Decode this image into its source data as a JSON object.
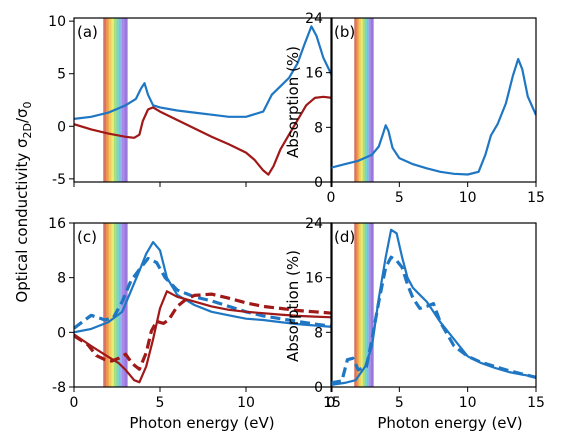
{
  "colors": {
    "blue": "#1f77c4",
    "red": "#a01818",
    "axis": "#000000"
  },
  "visible_band": {
    "x_range": [
      1.7,
      3.1
    ],
    "colors": [
      "#d45a4a",
      "#e88a3a",
      "#f0c040",
      "#e8e860",
      "#9fd86a",
      "#5fd0c8",
      "#7fa8e8",
      "#9a7ae0",
      "#8a60d8"
    ]
  },
  "shared_labels": {
    "ylabel_left": "Optical conductivity σ",
    "ylabel_left_sub": "2D",
    "ylabel_left_tail": "/σ",
    "ylabel_left_sub2": "0",
    "ylabel_right": "Absorption (%)",
    "xlabel": "Photon energy (eV)"
  },
  "chart_data": [
    {
      "id": "a",
      "panel_label": "(a)",
      "type": "line",
      "xlim": [
        0,
        15
      ],
      "ylim": [
        -5.3,
        10.3
      ],
      "xticks": [
        0,
        5,
        10,
        15
      ],
      "xticks_labeled": false,
      "yticks": [
        -5,
        0,
        5,
        10
      ],
      "series": [
        {
          "color": "blue",
          "dashed": false,
          "points": [
            [
              0,
              0.7
            ],
            [
              1,
              0.9
            ],
            [
              2,
              1.3
            ],
            [
              3,
              2.0
            ],
            [
              3.6,
              2.6
            ],
            [
              3.9,
              3.6
            ],
            [
              4.1,
              4.1
            ],
            [
              4.3,
              3.0
            ],
            [
              4.6,
              2.0
            ],
            [
              5,
              1.8
            ],
            [
              6,
              1.5
            ],
            [
              7,
              1.3
            ],
            [
              8,
              1.1
            ],
            [
              9,
              0.9
            ],
            [
              10,
              0.9
            ],
            [
              11,
              1.4
            ],
            [
              11.5,
              3.0
            ],
            [
              12,
              3.8
            ],
            [
              12.5,
              4.6
            ],
            [
              13,
              6.0
            ],
            [
              13.4,
              7.8
            ],
            [
              13.8,
              9.5
            ],
            [
              14.1,
              8.6
            ],
            [
              14.5,
              6.5
            ],
            [
              15,
              4.8
            ]
          ]
        },
        {
          "color": "red",
          "dashed": false,
          "points": [
            [
              0,
              0.2
            ],
            [
              1,
              -0.3
            ],
            [
              2,
              -0.7
            ],
            [
              3,
              -1.0
            ],
            [
              3.5,
              -1.1
            ],
            [
              3.8,
              -0.8
            ],
            [
              4.0,
              0.5
            ],
            [
              4.3,
              1.6
            ],
            [
              4.6,
              1.8
            ],
            [
              5,
              1.4
            ],
            [
              6,
              0.6
            ],
            [
              7,
              -0.2
            ],
            [
              8,
              -1.0
            ],
            [
              9,
              -1.7
            ],
            [
              10,
              -2.5
            ],
            [
              10.5,
              -3.2
            ],
            [
              11,
              -4.2
            ],
            [
              11.3,
              -4.6
            ],
            [
              11.6,
              -3.8
            ],
            [
              12,
              -2.2
            ],
            [
              12.5,
              -0.8
            ],
            [
              13,
              0.6
            ],
            [
              13.5,
              2.0
            ],
            [
              14,
              2.7
            ],
            [
              14.5,
              2.8
            ],
            [
              15,
              2.7
            ]
          ]
        }
      ]
    },
    {
      "id": "b",
      "panel_label": "(b)",
      "type": "line",
      "xlim": [
        0,
        15
      ],
      "ylim": [
        0,
        24
      ],
      "xticks": [
        0,
        5,
        10,
        15
      ],
      "xticks_labeled": true,
      "yticks": [
        0,
        8,
        16,
        24
      ],
      "series": [
        {
          "color": "blue",
          "dashed": false,
          "points": [
            [
              0,
              2.1
            ],
            [
              1,
              2.6
            ],
            [
              2,
              3.1
            ],
            [
              3,
              4.0
            ],
            [
              3.5,
              5.2
            ],
            [
              3.8,
              7.0
            ],
            [
              4.0,
              8.3
            ],
            [
              4.2,
              7.5
            ],
            [
              4.5,
              5.0
            ],
            [
              5,
              3.5
            ],
            [
              6,
              2.6
            ],
            [
              7,
              2.0
            ],
            [
              8,
              1.5
            ],
            [
              9,
              1.2
            ],
            [
              10,
              1.1
            ],
            [
              10.8,
              1.5
            ],
            [
              11.3,
              4.0
            ],
            [
              11.7,
              6.8
            ],
            [
              12.2,
              8.5
            ],
            [
              12.8,
              11.5
            ],
            [
              13.3,
              15.5
            ],
            [
              13.7,
              18.0
            ],
            [
              14,
              16.5
            ],
            [
              14.4,
              12.5
            ],
            [
              15,
              9.8
            ]
          ]
        }
      ]
    },
    {
      "id": "c",
      "panel_label": "(c)",
      "type": "line",
      "xlim": [
        0,
        15
      ],
      "ylim": [
        -8,
        16
      ],
      "xticks": [
        0,
        5,
        10,
        15
      ],
      "xticks_labeled": true,
      "yticks": [
        -8,
        0,
        8,
        16
      ],
      "series": [
        {
          "color": "blue",
          "dashed": false,
          "points": [
            [
              0,
              0
            ],
            [
              1,
              0.5
            ],
            [
              2,
              1.5
            ],
            [
              2.8,
              3.0
            ],
            [
              3.3,
              6.0
            ],
            [
              3.8,
              9.0
            ],
            [
              4.2,
              11.5
            ],
            [
              4.6,
              13.2
            ],
            [
              5.0,
              12.0
            ],
            [
              5.4,
              8.0
            ],
            [
              6,
              5.5
            ],
            [
              7,
              4.0
            ],
            [
              8,
              3.0
            ],
            [
              9,
              2.5
            ],
            [
              10,
              2.0
            ],
            [
              11,
              1.8
            ],
            [
              12,
              1.5
            ],
            [
              13,
              1.2
            ],
            [
              14,
              1.0
            ],
            [
              15,
              0.8
            ]
          ]
        },
        {
          "color": "blue",
          "dashed": true,
          "points": [
            [
              0,
              0.6
            ],
            [
              1,
              2.5
            ],
            [
              1.8,
              1.8
            ],
            [
              2.3,
              2.2
            ],
            [
              2.8,
              4.5
            ],
            [
              3.3,
              7.5
            ],
            [
              3.8,
              9.2
            ],
            [
              4.3,
              10.8
            ],
            [
              4.8,
              10.2
            ],
            [
              5.3,
              8.0
            ],
            [
              6,
              6.2
            ],
            [
              7,
              5.2
            ],
            [
              8,
              4.6
            ],
            [
              9,
              3.8
            ],
            [
              10,
              3.0
            ],
            [
              11,
              2.4
            ],
            [
              12,
              2.0
            ],
            [
              13,
              1.6
            ],
            [
              14,
              1.2
            ],
            [
              15,
              0.9
            ]
          ]
        },
        {
          "color": "red",
          "dashed": false,
          "points": [
            [
              0,
              -0.3
            ],
            [
              1,
              -2.0
            ],
            [
              2,
              -3.6
            ],
            [
              2.6,
              -4.5
            ],
            [
              3.0,
              -5.5
            ],
            [
              3.5,
              -7.0
            ],
            [
              3.8,
              -7.3
            ],
            [
              4.2,
              -5.0
            ],
            [
              4.6,
              -1.0
            ],
            [
              5.0,
              3.5
            ],
            [
              5.4,
              6.0
            ],
            [
              6,
              5.2
            ],
            [
              7,
              4.5
            ],
            [
              8,
              3.8
            ],
            [
              9,
              3.3
            ],
            [
              10,
              3.0
            ],
            [
              11,
              2.8
            ],
            [
              12,
              2.6
            ],
            [
              13,
              2.4
            ],
            [
              14,
              2.3
            ],
            [
              15,
              2.2
            ]
          ]
        },
        {
          "color": "red",
          "dashed": true,
          "points": [
            [
              0,
              -0.5
            ],
            [
              0.8,
              -1.8
            ],
            [
              1.3,
              -3.4
            ],
            [
              1.8,
              -4.0
            ],
            [
              2.2,
              -4.2
            ],
            [
              2.6,
              -3.8
            ],
            [
              3.0,
              -3.2
            ],
            [
              3.4,
              -4.6
            ],
            [
              3.8,
              -5.4
            ],
            [
              4.2,
              -3.0
            ],
            [
              4.5,
              0.2
            ],
            [
              4.8,
              1.6
            ],
            [
              5.2,
              1.3
            ],
            [
              5.5,
              1.8
            ],
            [
              6,
              3.8
            ],
            [
              6.5,
              4.8
            ],
            [
              7,
              5.4
            ],
            [
              8,
              5.6
            ],
            [
              9,
              5.0
            ],
            [
              10,
              4.3
            ],
            [
              11,
              3.8
            ],
            [
              12,
              3.5
            ],
            [
              13,
              3.2
            ],
            [
              14,
              3.0
            ],
            [
              15,
              2.8
            ]
          ]
        }
      ]
    },
    {
      "id": "d",
      "panel_label": "(d)",
      "type": "line",
      "xlim": [
        0,
        15
      ],
      "ylim": [
        0,
        24
      ],
      "xticks": [
        0,
        5,
        10,
        15
      ],
      "xticks_labeled": true,
      "yticks": [
        0,
        8,
        16,
        24
      ],
      "series": [
        {
          "color": "blue",
          "dashed": false,
          "points": [
            [
              0,
              0.3
            ],
            [
              1,
              0.6
            ],
            [
              1.8,
              1.0
            ],
            [
              2.5,
              3.0
            ],
            [
              3.0,
              6.0
            ],
            [
              3.5,
              13.0
            ],
            [
              4.0,
              19.0
            ],
            [
              4.4,
              23.0
            ],
            [
              4.8,
              22.5
            ],
            [
              5.2,
              19.0
            ],
            [
              5.6,
              16.0
            ],
            [
              6,
              14.5
            ],
            [
              6.5,
              13.5
            ],
            [
              7,
              12.5
            ],
            [
              7.5,
              11.0
            ],
            [
              8,
              9.5
            ],
            [
              9,
              7.0
            ],
            [
              10,
              4.5
            ],
            [
              11,
              3.5
            ],
            [
              12,
              2.8
            ],
            [
              13,
              2.2
            ],
            [
              14,
              1.8
            ],
            [
              15,
              1.5
            ]
          ]
        },
        {
          "color": "blue",
          "dashed": true,
          "points": [
            [
              0,
              0.6
            ],
            [
              0.8,
              0.9
            ],
            [
              1.2,
              4.0
            ],
            [
              1.6,
              4.2
            ],
            [
              2.0,
              2.5
            ],
            [
              2.6,
              3.0
            ],
            [
              3.0,
              7.0
            ],
            [
              3.5,
              12.5
            ],
            [
              4.0,
              17.5
            ],
            [
              4.4,
              19.0
            ],
            [
              4.8,
              18.5
            ],
            [
              5.2,
              17.5
            ],
            [
              5.6,
              15.0
            ],
            [
              6,
              13.0
            ],
            [
              6.5,
              11.5
            ],
            [
              7.0,
              11.8
            ],
            [
              7.5,
              12.2
            ],
            [
              8,
              9.5
            ],
            [
              9,
              6.0
            ],
            [
              10,
              4.5
            ],
            [
              11,
              3.6
            ],
            [
              12,
              3.0
            ],
            [
              13,
              2.4
            ],
            [
              14,
              1.9
            ],
            [
              15,
              1.4
            ]
          ]
        }
      ]
    }
  ],
  "panel_layout_key": [
    "a",
    "b",
    "c",
    "d"
  ]
}
